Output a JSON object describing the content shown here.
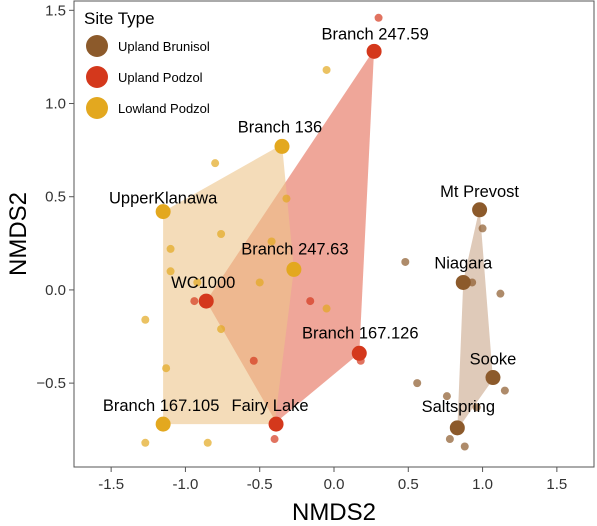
{
  "chart_data": {
    "type": "scatter",
    "xlabel": "NMDS2",
    "ylabel": "NMDS2",
    "xlim": [
      -1.75,
      1.75
    ],
    "ylim": [
      -0.95,
      1.55
    ],
    "x_ticks": [
      -1.5,
      -1.0,
      -0.5,
      0.0,
      0.5,
      1.0,
      1.5
    ],
    "x_tick_labels": [
      "-1.5",
      "-1.0",
      "-0.5",
      "0.0",
      "0.5",
      "1.0",
      "1.5"
    ],
    "y_ticks": [
      -0.5,
      0.0,
      0.5,
      1.0,
      1.5
    ],
    "y_tick_labels": [
      "−0.5",
      "0.0",
      "0.5",
      "1.0",
      "1.5"
    ],
    "grid": false,
    "legend": {
      "title": "Site Type",
      "position": "top-left",
      "entries": [
        {
          "name": "Upland Brunisol",
          "color": "#8c5a2b"
        },
        {
          "name": "Upland Podzol",
          "color": "#d4381c"
        },
        {
          "name": "Lowland Podzol",
          "color": "#e3a81f"
        }
      ]
    },
    "series": [
      {
        "name": "Upland Brunisol",
        "color": "#8c5a2b",
        "hull_color": "#c9a78a",
        "hull": [
          [
            0.98,
            0.44
          ],
          [
            1.07,
            -0.48
          ],
          [
            0.83,
            -0.75
          ],
          [
            0.87,
            0.05
          ]
        ],
        "centroids": [
          {
            "label": "Mt Prevost",
            "x": 0.98,
            "y": 0.43
          },
          {
            "label": "Niagara",
            "x": 0.87,
            "y": 0.04
          },
          {
            "label": "Sooke",
            "x": 1.07,
            "y": -0.47
          },
          {
            "label": "Saltspring",
            "x": 0.83,
            "y": -0.74
          }
        ],
        "points": [
          [
            1.0,
            0.33
          ],
          [
            0.48,
            0.15
          ],
          [
            0.93,
            0.04
          ],
          [
            1.12,
            -0.02
          ],
          [
            0.56,
            -0.5
          ],
          [
            0.76,
            -0.57
          ],
          [
            1.15,
            -0.54
          ],
          [
            0.96,
            -0.63
          ],
          [
            0.88,
            -0.84
          ],
          [
            0.78,
            -0.8
          ]
        ]
      },
      {
        "name": "Upland Podzol",
        "color": "#d4381c",
        "hull_color": "#e56b55",
        "hull": [
          [
            0.27,
            1.29
          ],
          [
            0.17,
            -0.34
          ],
          [
            -0.39,
            -0.71
          ],
          [
            -0.86,
            -0.06
          ]
        ],
        "centroids": [
          {
            "label": "Branch 247.59",
            "x": 0.27,
            "y": 1.28
          },
          {
            "label": "WC1000",
            "x": -0.86,
            "y": -0.06
          },
          {
            "label": "Branch 167.126",
            "x": 0.17,
            "y": -0.34
          },
          {
            "label": "Fairy Lake",
            "x": -0.39,
            "y": -0.72
          }
        ],
        "points": [
          [
            0.3,
            1.46
          ],
          [
            -0.94,
            -0.06
          ],
          [
            -0.54,
            -0.38
          ],
          [
            0.18,
            -0.38
          ],
          [
            -0.4,
            -0.8
          ],
          [
            -0.16,
            -0.06
          ]
        ]
      },
      {
        "name": "Lowland Podzol",
        "color": "#e3a81f",
        "hull_color": "#ecc58a",
        "hull": [
          [
            -1.15,
            0.42
          ],
          [
            -0.35,
            0.78
          ],
          [
            -0.27,
            0.11
          ],
          [
            -0.4,
            -0.72
          ],
          [
            -1.15,
            -0.72
          ]
        ],
        "centroids": [
          {
            "label": "Branch 136",
            "x": -0.35,
            "y": 0.77
          },
          {
            "label": "UpperKlanawa",
            "x": -1.15,
            "y": 0.42
          },
          {
            "label": "Branch 247.63",
            "x": -0.27,
            "y": 0.11
          },
          {
            "label": "Branch 167.105",
            "x": -1.15,
            "y": -0.72
          }
        ],
        "points": [
          [
            -0.05,
            1.18
          ],
          [
            -0.8,
            0.68
          ],
          [
            -0.32,
            0.49
          ],
          [
            -1.1,
            0.22
          ],
          [
            -0.76,
            0.3
          ],
          [
            -0.42,
            0.26
          ],
          [
            -1.1,
            0.1
          ],
          [
            -0.92,
            0.04
          ],
          [
            -0.5,
            0.04
          ],
          [
            -0.05,
            -0.1
          ],
          [
            -1.27,
            -0.16
          ],
          [
            -0.76,
            -0.21
          ],
          [
            -1.13,
            -0.42
          ],
          [
            -1.27,
            -0.82
          ],
          [
            -0.85,
            -0.82
          ]
        ]
      }
    ],
    "label_offsets": {
      "Mt Prevost": [
        0,
        -13,
        "middle"
      ],
      "Niagara": [
        0,
        -14,
        "middle"
      ],
      "Sooke": [
        0,
        -13,
        "middle"
      ],
      "Saltspring": [
        1,
        -16,
        "middle"
      ],
      "Branch 247.59": [
        1,
        -12,
        "middle"
      ],
      "WC1000": [
        -3,
        -13,
        "middle"
      ],
      "Branch 167.126": [
        1,
        -15,
        "middle"
      ],
      "Fairy Lake": [
        -6,
        -13,
        "middle"
      ],
      "Branch 136": [
        -2,
        -14,
        "middle"
      ],
      "UpperKlanawa": [
        0,
        -8,
        "middle"
      ],
      "Branch 247.63": [
        1,
        -15,
        "middle"
      ],
      "Branch 167.105": [
        -2,
        -13,
        "middle"
      ]
    }
  }
}
